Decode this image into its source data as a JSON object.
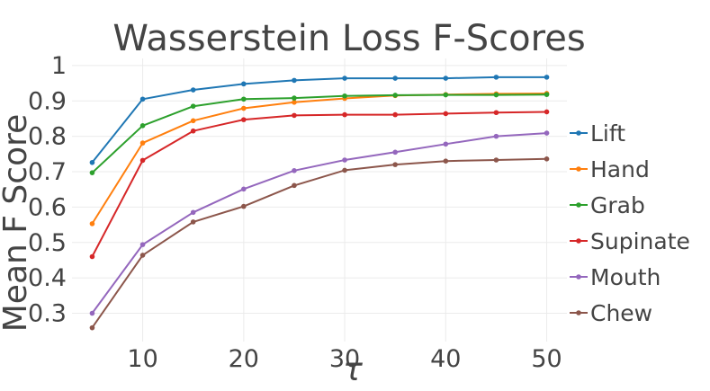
{
  "chart_data": {
    "type": "line",
    "title": "Wasserstein Loss F-Scores",
    "xlabel": "τ",
    "ylabel": "Mean F Score",
    "x": [
      5,
      10,
      15,
      20,
      25,
      30,
      35,
      40,
      45,
      50
    ],
    "xlim": [
      3,
      52
    ],
    "ylim": [
      0.22,
      1.02
    ],
    "xticks": [
      10,
      20,
      30,
      40,
      50
    ],
    "yticks": [
      0.3,
      0.4,
      0.5,
      0.6,
      0.7,
      0.8,
      0.9,
      1
    ],
    "ytick_labels": [
      "0.3",
      "0.4",
      "0.5",
      "0.6",
      "0.7",
      "0.8",
      "0.9",
      "1"
    ],
    "grid": true,
    "legend_position": "right",
    "series": [
      {
        "name": "Lift",
        "color": "#1f77b4",
        "values": [
          0.726,
          0.905,
          0.931,
          0.948,
          0.958,
          0.964,
          0.964,
          0.964,
          0.967,
          0.967
        ]
      },
      {
        "name": "Hand",
        "color": "#ff7f0e",
        "values": [
          0.553,
          0.781,
          0.844,
          0.879,
          0.896,
          0.907,
          0.915,
          0.918,
          0.92,
          0.921
        ]
      },
      {
        "name": "Grab",
        "color": "#2ca02c",
        "values": [
          0.697,
          0.83,
          0.885,
          0.905,
          0.908,
          0.914,
          0.916,
          0.917,
          0.917,
          0.918
        ]
      },
      {
        "name": "Supinate",
        "color": "#d62728",
        "values": [
          0.46,
          0.732,
          0.815,
          0.847,
          0.859,
          0.861,
          0.861,
          0.864,
          0.867,
          0.869
        ]
      },
      {
        "name": "Mouth",
        "color": "#9467bd",
        "values": [
          0.3,
          0.494,
          0.585,
          0.651,
          0.703,
          0.733,
          0.755,
          0.778,
          0.8,
          0.809
        ]
      },
      {
        "name": "Chew",
        "color": "#8c564b",
        "values": [
          0.259,
          0.464,
          0.558,
          0.602,
          0.661,
          0.704,
          0.72,
          0.73,
          0.733,
          0.736
        ]
      }
    ]
  }
}
